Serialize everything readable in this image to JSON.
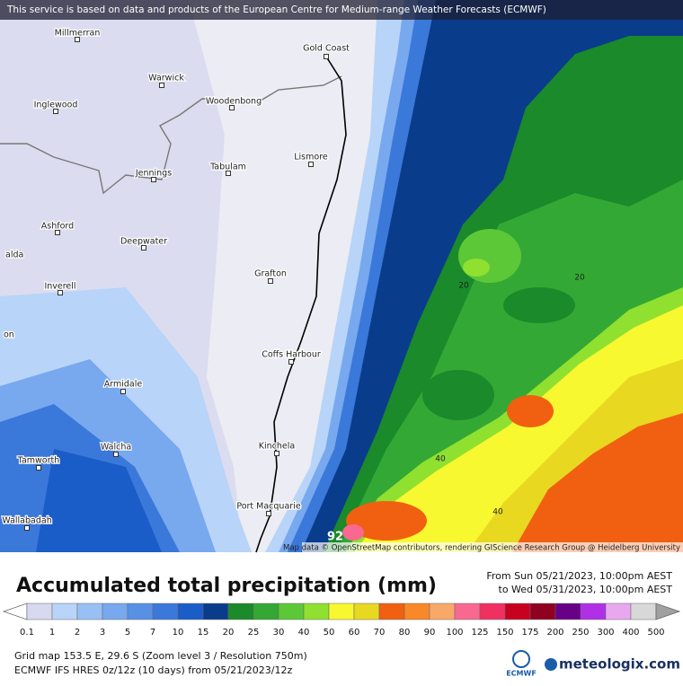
{
  "banner": "This service is based on data and products of the European Centre for Medium-range Weather Forecasts (ECMWF)",
  "places": [
    "Millmerran",
    "Gold Coast",
    "Warwick",
    "Inglewood",
    "Woodenbong",
    "Lismore",
    "Jennings",
    "Tabulam",
    "Ashford",
    "Deepwater",
    "alda",
    "Grafton",
    "Inverell",
    "on",
    "Coffs Harbour",
    "Armidale",
    "Walcha",
    "Kinchela",
    "Tamworth",
    "Port Macquarie",
    "Wallabadah"
  ],
  "contour_labels": [
    "20",
    "20",
    "40",
    "40",
    "92"
  ],
  "attribution": "Map data © OpenStreetMap contributors, rendering GIScience Research Group @ Heidelberg University",
  "title": "Accumulated total precipitation (mm)",
  "period_from": "From Sun 05/21/2023, 10:00pm AEST",
  "period_to": "to Wed 05/31/2023, 10:00pm AEST",
  "legend": {
    "ticks": [
      0.1,
      1,
      2,
      3,
      5,
      7,
      10,
      15,
      20,
      25,
      30,
      40,
      50,
      60,
      70,
      80,
      90,
      100,
      125,
      150,
      175,
      200,
      250,
      300,
      400,
      500
    ],
    "colors": [
      "#ffffff",
      "#d8d8f0",
      "#b8d4f8",
      "#98c0f4",
      "#78a8ee",
      "#5890e6",
      "#3a78da",
      "#1a5cc8",
      "#0a3c8c",
      "#1a8a2a",
      "#34a834",
      "#5cc838",
      "#90e030",
      "#f8f830",
      "#e8d820",
      "#f06010",
      "#f88828",
      "#f8a868",
      "#f86890",
      "#f03060",
      "#c80020",
      "#900020",
      "#680088",
      "#b030e8",
      "#e8a8f0",
      "#d8d8d8",
      "#a0a0a0"
    ]
  },
  "footer": {
    "grid": "Grid map 153.5 E, 29.6 S (Zoom level 3 / Resolution 750m)",
    "model": "ECMWF IFS HRES 0z/12z (10 days) from  05/21/2023/12z",
    "ecmwf": "ECMWF",
    "brand": "meteologix.com"
  }
}
